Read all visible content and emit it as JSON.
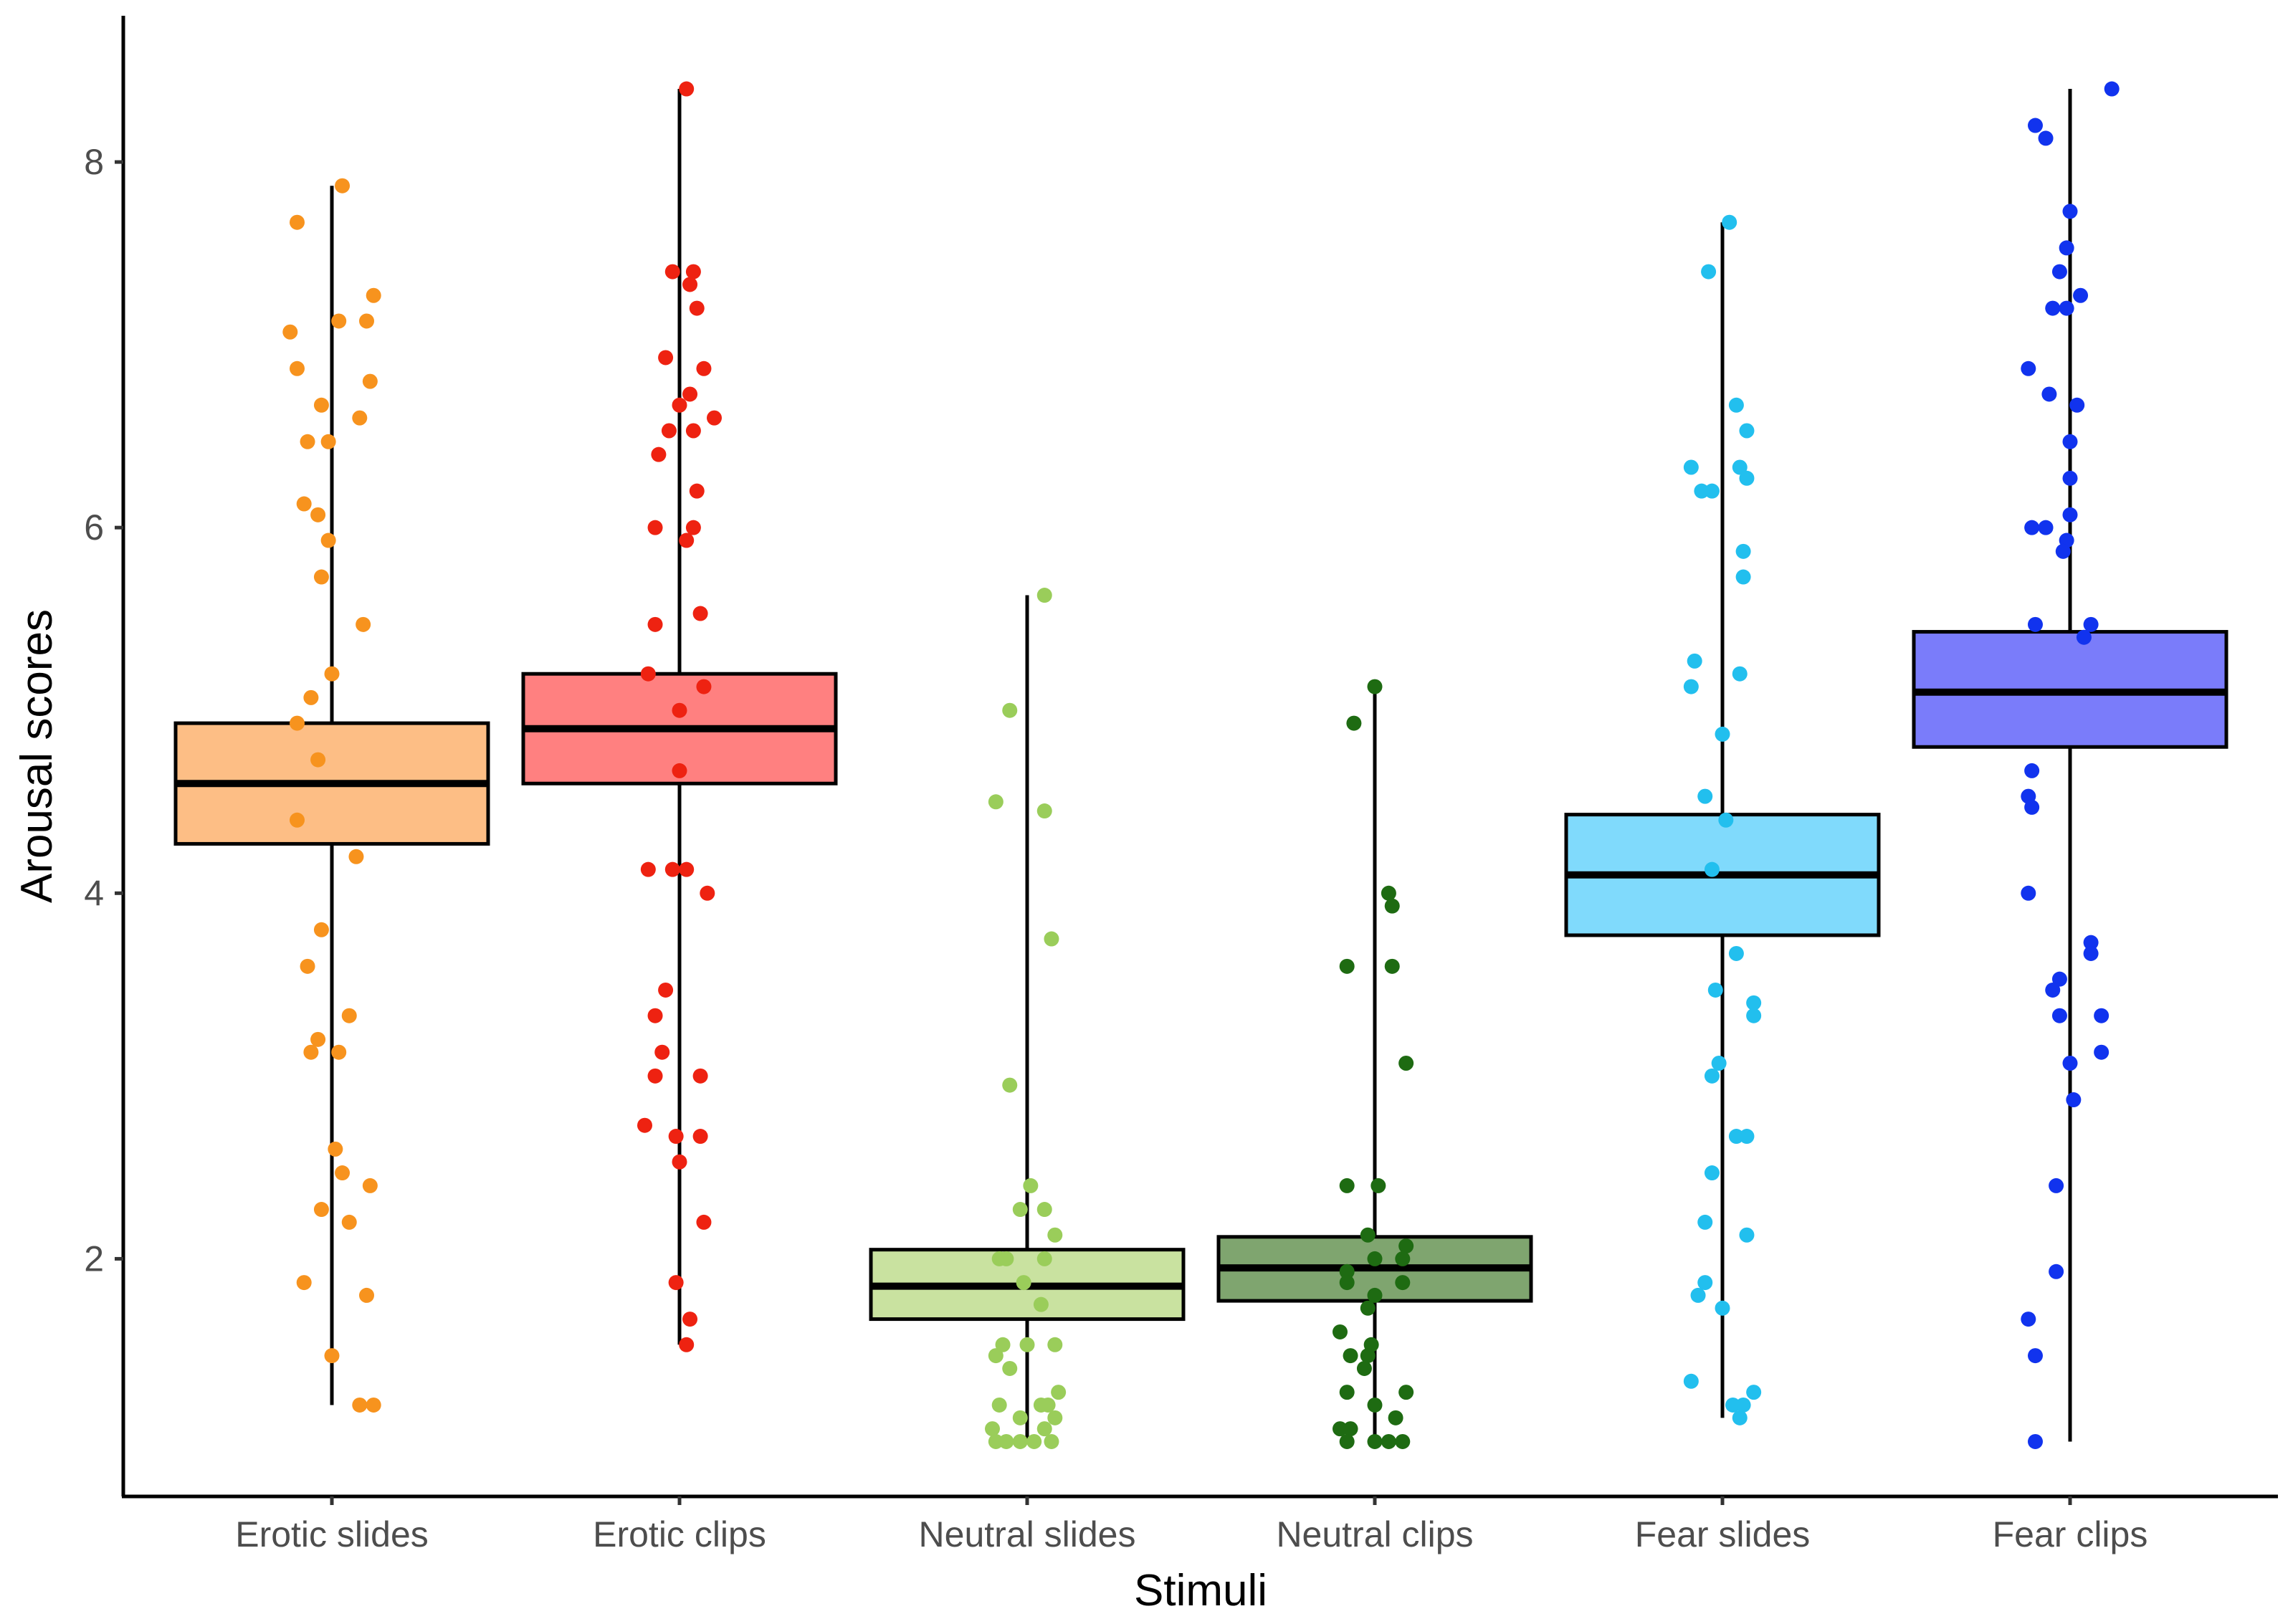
{
  "chart_data": {
    "type": "boxplot",
    "title": "",
    "xlabel": "Stimuli",
    "ylabel": "Arousal scores",
    "ylim": [
      0.7,
      8.8
    ],
    "yticks": [
      2,
      4,
      6,
      8
    ],
    "grid": false,
    "categories": [
      "Erotic slides",
      "Erotic clips",
      "Neutral slides",
      "Neutral clips",
      "Fear slides",
      "Fear clips"
    ],
    "series": [
      {
        "name": "Erotic slides",
        "fill": "#FDBE85",
        "point_color": "#F7931E",
        "whisker_low": 1.2,
        "q1": 4.27,
        "median": 4.6,
        "q3": 4.93,
        "whisker_high": 7.87,
        "points": [
          7.87,
          7.67,
          7.27,
          7.13,
          7.13,
          7.07,
          6.87,
          6.8,
          6.67,
          6.6,
          6.47,
          6.47,
          6.13,
          6.07,
          5.93,
          5.73,
          5.47,
          5.2,
          5.07,
          4.93,
          4.73,
          4.4,
          4.2,
          3.8,
          3.6,
          3.33,
          3.2,
          3.13,
          3.13,
          2.6,
          2.47,
          2.4,
          2.27,
          2.2,
          1.87,
          1.8,
          1.47,
          1.2,
          1.2
        ],
        "offsets": [
          0.03,
          -0.1,
          0.12,
          0.02,
          0.1,
          -0.12,
          -0.1,
          0.11,
          -0.03,
          0.08,
          -0.07,
          -0.01,
          -0.08,
          -0.04,
          -0.01,
          -0.03,
          0.09,
          0.0,
          -0.06,
          -0.1,
          -0.04,
          -0.1,
          0.07,
          -0.03,
          -0.07,
          0.05,
          -0.04,
          -0.06,
          0.02,
          0.01,
          0.03,
          0.11,
          -0.03,
          0.05,
          -0.08,
          0.1,
          0.0,
          0.08,
          0.12
        ]
      },
      {
        "name": "Erotic clips",
        "fill": "#FF8080",
        "point_color": "#EE2211",
        "whisker_low": 1.53,
        "q1": 4.6,
        "median": 4.9,
        "q3": 5.2,
        "whisker_high": 8.4,
        "points": [
          8.4,
          7.4,
          7.4,
          7.33,
          7.2,
          6.93,
          6.87,
          6.73,
          6.67,
          6.6,
          6.53,
          6.53,
          6.4,
          6.2,
          6.0,
          6.0,
          5.93,
          5.53,
          5.47,
          5.2,
          5.13,
          5.0,
          4.67,
          4.13,
          4.13,
          4.13,
          4.0,
          3.47,
          3.33,
          3.13,
          3.0,
          3.0,
          2.73,
          2.67,
          2.67,
          2.53,
          2.2,
          1.87,
          1.67,
          1.53
        ],
        "offsets": [
          0.02,
          -0.02,
          0.04,
          0.03,
          0.05,
          -0.04,
          0.07,
          0.03,
          0.0,
          0.1,
          -0.03,
          0.04,
          -0.06,
          0.05,
          -0.07,
          0.04,
          0.02,
          0.06,
          -0.07,
          -0.09,
          0.07,
          0.0,
          0.0,
          -0.09,
          -0.02,
          0.02,
          0.08,
          -0.04,
          -0.07,
          -0.05,
          -0.07,
          0.06,
          -0.1,
          -0.01,
          0.06,
          0.0,
          0.07,
          -0.01,
          0.03,
          0.02
        ]
      },
      {
        "name": "Neutral slides",
        "fill": "#C9E2A0",
        "point_color": "#9ACD5A",
        "whisker_low": 1.0,
        "q1": 1.67,
        "median": 1.85,
        "q3": 2.05,
        "whisker_high": 5.63,
        "points": [
          5.63,
          5.0,
          4.5,
          4.45,
          3.75,
          2.95,
          2.4,
          2.27,
          2.27,
          2.13,
          2.0,
          2.0,
          2.0,
          1.87,
          1.75,
          1.53,
          1.53,
          1.53,
          1.47,
          1.4,
          1.27,
          1.2,
          1.2,
          1.2,
          1.13,
          1.13,
          1.07,
          1.07,
          1.0,
          1.0,
          1.0,
          1.0,
          1.0
        ],
        "offsets": [
          0.05,
          -0.05,
          -0.09,
          0.05,
          0.07,
          -0.05,
          0.01,
          0.05,
          -0.02,
          0.08,
          -0.08,
          -0.06,
          0.05,
          -0.01,
          0.04,
          0.08,
          -0.07,
          -0.0,
          -0.09,
          -0.05,
          0.09,
          -0.08,
          0.04,
          0.06,
          -0.02,
          0.08,
          -0.1,
          0.05,
          -0.09,
          -0.06,
          -0.02,
          0.02,
          0.07
        ]
      },
      {
        "name": "Neutral clips",
        "fill": "#7FA56F",
        "point_color": "#1E6B12",
        "whisker_low": 1.0,
        "q1": 1.77,
        "median": 1.95,
        "q3": 2.12,
        "whisker_high": 5.13,
        "points": [
          5.13,
          4.93,
          4.0,
          3.93,
          3.6,
          3.6,
          3.07,
          2.4,
          2.4,
          2.13,
          2.07,
          2.0,
          2.0,
          1.93,
          1.87,
          1.87,
          1.8,
          1.73,
          1.6,
          1.53,
          1.47,
          1.47,
          1.4,
          1.27,
          1.27,
          1.2,
          1.13,
          1.07,
          1.07,
          1.0,
          1.0,
          1.0,
          1.0
        ],
        "offsets": [
          0.0,
          -0.06,
          0.04,
          0.05,
          -0.08,
          0.05,
          0.09,
          -0.08,
          0.01,
          -0.02,
          0.09,
          0.0,
          0.08,
          -0.08,
          -0.08,
          0.08,
          0.0,
          -0.02,
          -0.1,
          -0.01,
          -0.07,
          -0.02,
          -0.03,
          -0.08,
          0.09,
          0.0,
          0.06,
          -0.1,
          -0.07,
          -0.08,
          0.0,
          0.04,
          0.08
        ]
      },
      {
        "name": "Fear slides",
        "fill": "#80DAFC",
        "point_color": "#22BFEE",
        "whisker_low": 1.13,
        "q1": 3.77,
        "median": 4.1,
        "q3": 4.43,
        "whisker_high": 7.67,
        "points": [
          7.67,
          7.4,
          6.67,
          6.53,
          6.33,
          6.33,
          6.27,
          6.2,
          6.2,
          5.87,
          5.73,
          5.27,
          5.2,
          5.13,
          4.87,
          4.53,
          4.4,
          4.13,
          3.67,
          3.47,
          3.4,
          3.33,
          3.07,
          3.0,
          2.67,
          2.67,
          2.47,
          2.2,
          2.13,
          1.87,
          1.8,
          1.73,
          1.33,
          1.27,
          1.2,
          1.2,
          1.13
        ],
        "offsets": [
          0.02,
          -0.04,
          0.04,
          0.07,
          -0.09,
          0.05,
          0.07,
          -0.06,
          -0.03,
          0.06,
          0.06,
          -0.08,
          0.05,
          -0.09,
          0.0,
          -0.05,
          0.01,
          -0.03,
          0.04,
          -0.02,
          0.09,
          0.09,
          -0.01,
          -0.03,
          0.04,
          0.07,
          -0.03,
          -0.05,
          0.07,
          -0.05,
          -0.07,
          0.0,
          -0.09,
          0.09,
          0.03,
          0.06,
          0.05
        ]
      },
      {
        "name": "Fear clips",
        "fill": "#7A7CFA",
        "point_color": "#1133EE",
        "whisker_low": 1.0,
        "q1": 4.8,
        "median": 5.1,
        "q3": 5.43,
        "whisker_high": 8.4,
        "points": [
          8.4,
          8.2,
          8.13,
          7.73,
          7.53,
          7.4,
          7.27,
          7.2,
          7.2,
          6.87,
          6.73,
          6.67,
          6.47,
          6.27,
          6.07,
          6.0,
          6.0,
          5.93,
          5.87,
          5.47,
          5.47,
          5.4,
          4.67,
          4.53,
          4.47,
          4.0,
          3.73,
          3.67,
          3.53,
          3.47,
          3.33,
          3.33,
          3.13,
          3.07,
          2.87,
          2.4,
          1.93,
          1.67,
          1.47,
          1.0
        ],
        "offsets": [
          0.12,
          -0.1,
          -0.07,
          0.0,
          -0.01,
          -0.03,
          0.03,
          -0.01,
          -0.05,
          -0.12,
          -0.06,
          0.02,
          0.0,
          0.0,
          0.0,
          -0.07,
          -0.11,
          -0.01,
          -0.02,
          0.06,
          -0.1,
          0.04,
          -0.11,
          -0.12,
          -0.11,
          -0.12,
          0.06,
          0.06,
          -0.03,
          -0.05,
          -0.03,
          0.09,
          0.09,
          0.0,
          0.01,
          -0.04,
          -0.04,
          -0.12,
          -0.1,
          -0.1
        ]
      }
    ]
  }
}
